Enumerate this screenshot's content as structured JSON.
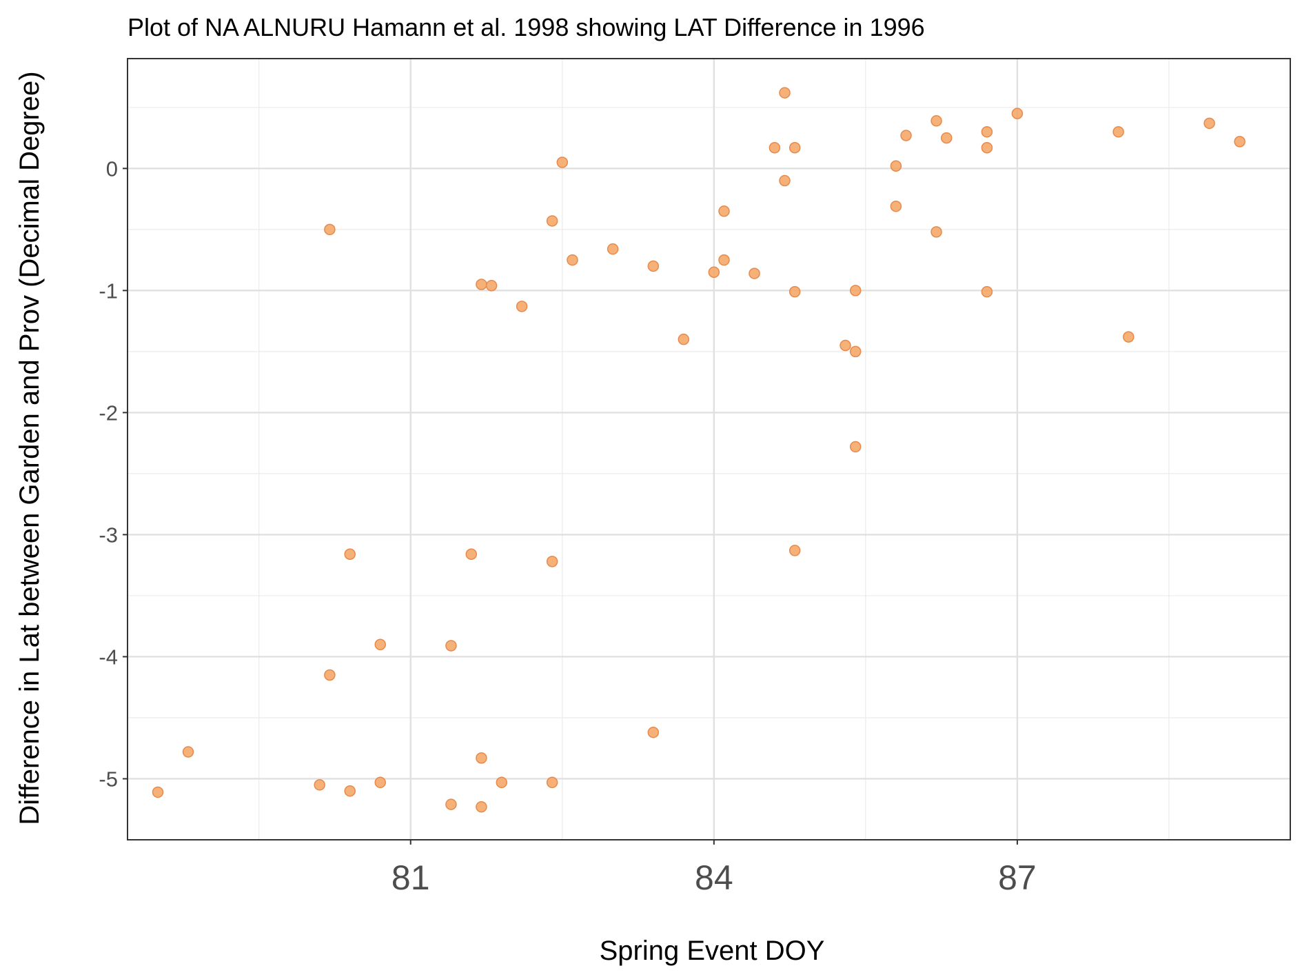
{
  "chart_data": {
    "type": "scatter",
    "title": "Plot of NA ALNURU Hamann et al. 1998 showing LAT Difference in 1996",
    "xlabel": "Spring Event DOY",
    "ylabel": "Difference in Lat between Garden and Prov (Decimal Degree)",
    "xlim": [
      78.2,
      89.7
    ],
    "ylim": [
      -5.5,
      0.9
    ],
    "xticks": [
      81,
      84,
      87
    ],
    "xtick_labels": [
      "81",
      "84",
      "87"
    ],
    "yticks": [
      0,
      -1,
      -2,
      -3,
      -4,
      -5
    ],
    "ytick_labels": [
      "0",
      "-1",
      "-2",
      "-3",
      "-4",
      "-5"
    ],
    "grid": true,
    "legend": "none",
    "point_color": "#f4a361",
    "point_edge_color": "#e8894a",
    "series": [
      {
        "points": [
          [
            78.5,
            -5.11
          ],
          [
            78.8,
            -4.78
          ],
          [
            80.1,
            -5.05
          ],
          [
            80.2,
            -0.5
          ],
          [
            80.2,
            -4.15
          ],
          [
            80.4,
            -3.16
          ],
          [
            80.4,
            -5.1
          ],
          [
            80.7,
            -3.9
          ],
          [
            80.7,
            -5.03
          ],
          [
            81.4,
            -3.91
          ],
          [
            81.4,
            -5.21
          ],
          [
            81.6,
            -3.16
          ],
          [
            81.7,
            -0.95
          ],
          [
            81.7,
            -4.83
          ],
          [
            81.7,
            -5.23
          ],
          [
            81.8,
            -0.96
          ],
          [
            81.9,
            -5.03
          ],
          [
            82.1,
            -1.13
          ],
          [
            82.4,
            -0.43
          ],
          [
            82.4,
            -3.22
          ],
          [
            82.4,
            -5.03
          ],
          [
            82.5,
            0.05
          ],
          [
            82.6,
            -0.75
          ],
          [
            83.0,
            -0.66
          ],
          [
            83.4,
            -0.8
          ],
          [
            83.4,
            -4.62
          ],
          [
            83.7,
            -1.4
          ],
          [
            84.0,
            -0.85
          ],
          [
            84.1,
            -0.35
          ],
          [
            84.1,
            -0.75
          ],
          [
            84.4,
            -0.86
          ],
          [
            84.6,
            0.17
          ],
          [
            84.7,
            0.62
          ],
          [
            84.7,
            -0.1
          ],
          [
            84.8,
            0.17
          ],
          [
            84.8,
            -1.01
          ],
          [
            84.8,
            -3.13
          ],
          [
            85.3,
            -1.45
          ],
          [
            85.4,
            -1.0
          ],
          [
            85.4,
            -1.5
          ],
          [
            85.4,
            -2.28
          ],
          [
            85.8,
            0.02
          ],
          [
            85.8,
            -0.31
          ],
          [
            85.9,
            0.27
          ],
          [
            86.2,
            0.39
          ],
          [
            86.2,
            -0.52
          ],
          [
            86.3,
            0.25
          ],
          [
            86.7,
            0.3
          ],
          [
            86.7,
            0.17
          ],
          [
            86.7,
            -1.01
          ],
          [
            87.0,
            0.45
          ],
          [
            88.0,
            0.3
          ],
          [
            88.1,
            -1.38
          ],
          [
            88.9,
            0.37
          ],
          [
            89.2,
            0.22
          ]
        ]
      }
    ]
  }
}
